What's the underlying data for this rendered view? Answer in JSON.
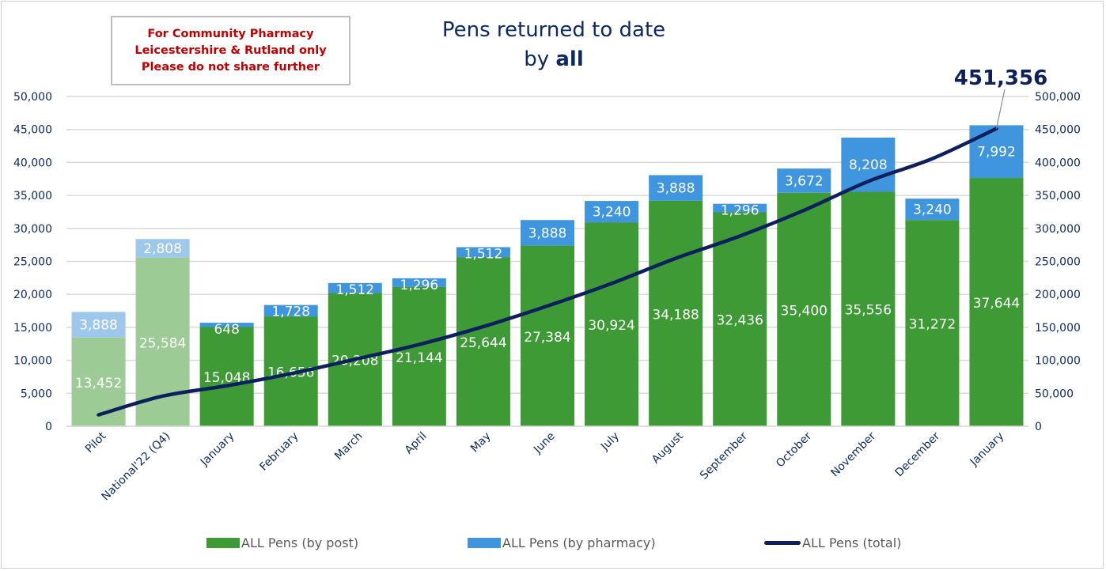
{
  "notice": {
    "line1": "For Community Pharmacy",
    "line2": "Leicestershire & Rutland only",
    "line3": "Please do not share further"
  },
  "title": {
    "line1": "Pens returned to date",
    "line2_prefix": "by ",
    "line2_bold": "all"
  },
  "callout": {
    "label": "451,356"
  },
  "colors": {
    "post": "#3d9a35",
    "pharmacy": "#3f96de",
    "post_pilot": "#9dcb95",
    "pharmacy_pilot": "#9dc8ec",
    "total_line": "#0d1f5c",
    "axis_text": "#0d2a63",
    "grid": "#d9d9d9"
  },
  "legend": {
    "post": "ALL Pens (by post)",
    "pharmacy": "ALL Pens (by pharmacy)",
    "total": "ALL Pens (total)"
  },
  "chart_data": {
    "type": "bar",
    "stacked": true,
    "title": "Pens returned to date by all",
    "categories": [
      "Pilot",
      "National'22 (Q4)",
      "January",
      "February",
      "March",
      "April",
      "May",
      "June",
      "July",
      "August",
      "September",
      "October",
      "November",
      "December",
      "January"
    ],
    "series": [
      {
        "name": "ALL Pens (by post)",
        "type": "bar",
        "axis": "left",
        "values": [
          13452,
          25584,
          15048,
          16656,
          20208,
          21144,
          25644,
          27384,
          30924,
          34188,
          32436,
          35400,
          35556,
          31272,
          37644
        ]
      },
      {
        "name": "ALL Pens (by pharmacy)",
        "type": "bar",
        "axis": "left",
        "values": [
          3888,
          2808,
          648,
          1728,
          1512,
          1296,
          1512,
          3888,
          3240,
          3888,
          1296,
          3672,
          8208,
          3240,
          7992
        ]
      },
      {
        "name": "ALL Pens (total)",
        "type": "line",
        "axis": "right",
        "values": [
          17340,
          45732,
          61428,
          79812,
          101532,
          123972,
          151128,
          182400,
          216564,
          254640,
          288372,
          327444,
          371208,
          405720,
          451356
        ]
      }
    ],
    "faded_categories": [
      "Pilot",
      "National'22 (Q4)"
    ],
    "left_axis": {
      "ylim": [
        0,
        50000
      ],
      "ticks": [
        "0",
        "5,000",
        "10,000",
        "15,000",
        "20,000",
        "25,000",
        "30,000",
        "35,000",
        "40,000",
        "45,000",
        "50,000"
      ]
    },
    "right_axis": {
      "ylim": [
        0,
        500000
      ],
      "ticks": [
        "0",
        "50,000",
        "100,000",
        "150,000",
        "200,000",
        "250,000",
        "300,000",
        "350,000",
        "400,000",
        "450,000",
        "500,000"
      ]
    },
    "annotations": [
      {
        "text": "451,356",
        "target": "last total point"
      }
    ],
    "grid": true,
    "legend_position": "bottom",
    "xlabel": "",
    "ylabel": ""
  }
}
